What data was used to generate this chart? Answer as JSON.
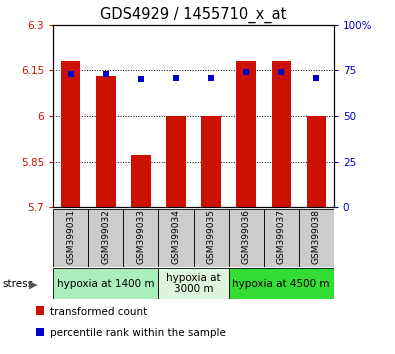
{
  "title": "GDS4929 / 1455710_x_at",
  "samples": [
    "GSM399031",
    "GSM399032",
    "GSM399033",
    "GSM399034",
    "GSM399035",
    "GSM399036",
    "GSM399037",
    "GSM399038"
  ],
  "bar_values": [
    6.18,
    6.13,
    5.87,
    6.0,
    6.0,
    6.18,
    6.18,
    6.0
  ],
  "blue_values": [
    73,
    73,
    70,
    71,
    71,
    74,
    74,
    71
  ],
  "ylim": [
    5.7,
    6.3
  ],
  "ylim_right": [
    0,
    100
  ],
  "yticks_left": [
    5.7,
    5.85,
    6.0,
    6.15,
    6.3
  ],
  "yticks_right": [
    0,
    25,
    50,
    75,
    100
  ],
  "ytick_labels_left": [
    "5.7",
    "5.85",
    "6",
    "6.15",
    "6.3"
  ],
  "ytick_labels_right": [
    "0",
    "25",
    "50",
    "75",
    "100%"
  ],
  "bar_color": "#cc1100",
  "blue_color": "#0000cc",
  "bar_bottom": 5.7,
  "groups": [
    {
      "label": "hypoxia at 1400 m",
      "indices": [
        0,
        1,
        2
      ],
      "color": "#aaeebb"
    },
    {
      "label": "hypoxia at\n3000 m",
      "indices": [
        3,
        4
      ],
      "color": "#ddf5dd"
    },
    {
      "label": "hypoxia at 4500 m",
      "indices": [
        5,
        6,
        7
      ],
      "color": "#33dd33"
    }
  ],
  "legend_items": [
    {
      "color": "#cc1100",
      "label": "transformed count"
    },
    {
      "color": "#0000cc",
      "label": "percentile rank within the sample"
    }
  ],
  "stress_label": "stress",
  "title_fontsize": 10.5,
  "tick_fontsize": 7.5,
  "sample_fontsize": 6.5,
  "group_fontsize": 7.5,
  "legend_fontsize": 7.5
}
